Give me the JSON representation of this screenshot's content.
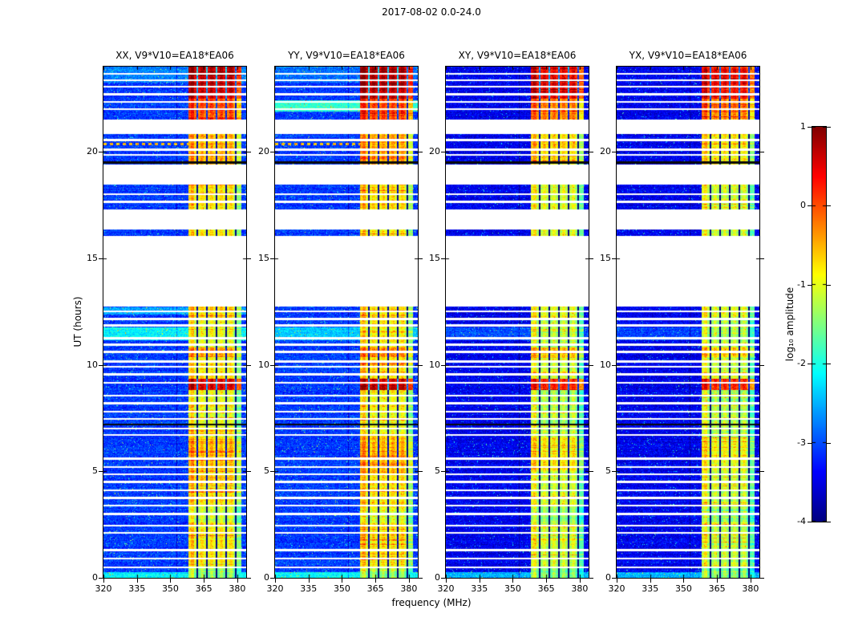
{
  "chart_data": {
    "type": "heatmap",
    "title": "2017-08-02 0.0-24.0",
    "panels": [
      {
        "label": "XX",
        "title": "XX, V9*V10=EA18*EA06",
        "baseline_log10_amp": -3.1,
        "band_offset": 0,
        "red_dashes": true,
        "bright_rows_ut": [
          [
            11.15,
            11.75,
            0.95
          ],
          [
            12.35,
            12.7,
            0.55
          ],
          [
            23.25,
            24,
            0.35
          ]
        ]
      },
      {
        "label": "YY",
        "title": "YY, V9*V10=EA18*EA06",
        "baseline_log10_amp": -3.1,
        "band_offset": 0.05,
        "red_dashes": true,
        "bright_rows_ut": [
          [
            11.15,
            11.75,
            0.75
          ],
          [
            21.9,
            22.4,
            1.25
          ],
          [
            23.25,
            24,
            0.3
          ]
        ]
      },
      {
        "label": "XY",
        "title": "XY, V9*V10=EA18*EA06",
        "baseline_log10_amp": -3.45,
        "band_offset": -0.25,
        "red_dashes": false,
        "bright_rows_ut": [
          [
            11.15,
            11.75,
            0.45
          ]
        ]
      },
      {
        "label": "YX",
        "title": "YX, V9*V10=EA18*EA06",
        "baseline_log10_amp": -3.45,
        "band_offset": -0.3,
        "red_dashes": false,
        "bright_rows_ut": [
          [
            11.15,
            11.75,
            0.4
          ]
        ]
      }
    ],
    "x_axis": {
      "label": "frequency (MHz)",
      "range": [
        320,
        384
      ],
      "ticks": [
        320,
        335,
        350,
        365,
        380
      ]
    },
    "y_axis": {
      "label": "UT (hours)",
      "range": [
        0,
        24
      ],
      "ticks": [
        0,
        5,
        10,
        15,
        20
      ]
    },
    "colorbar": {
      "label": "log₁₀ amplitude",
      "range": [
        -4,
        1
      ],
      "ticks": [
        1,
        0,
        -1,
        -2,
        -3,
        -4
      ],
      "colormap": "jet"
    },
    "features": {
      "rfi_band_mhz": [
        358.1,
        381.8
      ],
      "band_notches_mhz": [
        362.2,
        366.5,
        370.8,
        375.1,
        379.3
      ],
      "band_bright_mhz": [
        360.0,
        364.3,
        368.6,
        372.9,
        377.2
      ],
      "band_left_bright_mhz": [
        358.1,
        360.6
      ],
      "band_right_soft_mhz": 378.6,
      "background_line_mhz": 352.9,
      "data_gaps_ut": [
        [
          12.75,
          16.05
        ],
        [
          16.35,
          17.3
        ],
        [
          18.45,
          19.4
        ],
        [
          20.85,
          21.5
        ]
      ],
      "black_lines_ut": [
        [
          7.2,
          0.05
        ],
        [
          19.5,
          0.065
        ]
      ],
      "white_lines_ut": [
        0.5,
        0.9,
        1.3,
        2.1,
        2.45,
        3.0,
        3.4,
        3.75,
        4.1,
        4.5,
        4.85,
        5.2,
        5.6,
        6.7,
        7.0,
        7.45,
        7.8,
        8.2,
        8.55,
        9.15,
        9.55,
        9.9,
        10.15,
        10.6,
        10.95,
        11.25,
        11.85,
        12.15,
        12.5,
        17.65,
        18.0,
        19.85,
        20.1,
        20.55,
        22.0,
        22.35,
        22.7,
        23.05,
        23.35,
        23.65
      ],
      "bottom_bright_ut": 0.28,
      "red_dash_row_ut": 20.35,
      "band_segments_ut": [
        [
          0,
          0.45,
          -1.5
        ],
        [
          0.45,
          2.6,
          -1.05
        ],
        [
          2.6,
          3.3,
          -1.3
        ],
        [
          3.3,
          5.0,
          -1.0
        ],
        [
          5.0,
          6.6,
          -0.78
        ],
        [
          6.6,
          8.8,
          -1.15
        ],
        [
          8.8,
          9.35,
          0.35
        ],
        [
          9.35,
          10.35,
          -1.0
        ],
        [
          10.35,
          10.8,
          -0.55
        ],
        [
          10.8,
          12.2,
          -1.1
        ],
        [
          12.2,
          12.75,
          -0.9
        ],
        [
          16.05,
          16.35,
          -1.0
        ],
        [
          17.3,
          18.45,
          -0.95
        ],
        [
          19.4,
          20.85,
          -0.68
        ],
        [
          21.5,
          22.5,
          -0.15
        ],
        [
          22.5,
          24,
          0.5
        ]
      ]
    }
  }
}
